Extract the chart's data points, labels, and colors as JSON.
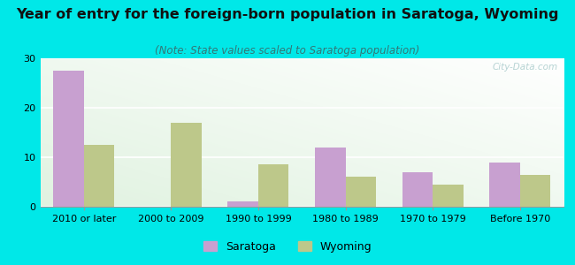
{
  "title": "Year of entry for the foreign-born population in Saratoga, Wyoming",
  "subtitle": "(Note: State values scaled to Saratoga population)",
  "categories": [
    "2010 or later",
    "2000 to 2009",
    "1990 to 1999",
    "1980 to 1989",
    "1970 to 1979",
    "Before 1970"
  ],
  "saratoga_values": [
    27.5,
    0,
    1.0,
    12.0,
    7.0,
    9.0
  ],
  "wyoming_values": [
    12.5,
    17.0,
    8.5,
    6.0,
    4.5,
    6.5
  ],
  "saratoga_color": "#c8a0d0",
  "wyoming_color": "#bdc88a",
  "background_color": "#00e8e8",
  "ylim": [
    0,
    30
  ],
  "yticks": [
    0,
    10,
    20,
    30
  ],
  "bar_width": 0.35,
  "title_fontsize": 11.5,
  "subtitle_fontsize": 8.5,
  "tick_fontsize": 8,
  "legend_fontsize": 9,
  "watermark": "City-Data.com"
}
